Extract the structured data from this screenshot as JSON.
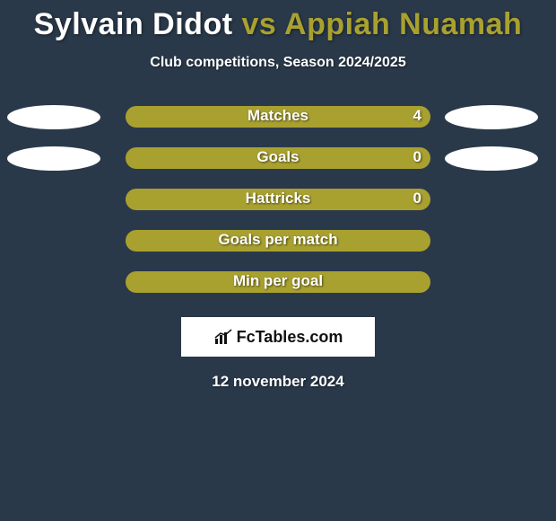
{
  "title": {
    "player1": "Sylvain Didot",
    "vs": "vs",
    "player2": "Appiah Nuamah",
    "player1_color": "#ffffff",
    "vs_color": "#a9a12f",
    "player2_color": "#a9a12f",
    "fontsize": 34
  },
  "subtitle": "Club competitions, Season 2024/2025",
  "background_color": "#2a394a",
  "bar_color": "#a9a12f",
  "ellipse_color": "#ffffff",
  "text_color": "#ffffff",
  "rows": [
    {
      "label": "Matches",
      "value": "4",
      "show_value": true,
      "show_left_ellipse": true,
      "show_right_ellipse": true
    },
    {
      "label": "Goals",
      "value": "0",
      "show_value": true,
      "show_left_ellipse": true,
      "show_right_ellipse": true
    },
    {
      "label": "Hattricks",
      "value": "0",
      "show_value": true,
      "show_left_ellipse": false,
      "show_right_ellipse": false
    },
    {
      "label": "Goals per match",
      "value": "",
      "show_value": false,
      "show_left_ellipse": false,
      "show_right_ellipse": false
    },
    {
      "label": "Min per goal",
      "value": "",
      "show_value": false,
      "show_left_ellipse": false,
      "show_right_ellipse": false
    }
  ],
  "logo": {
    "text": "FcTables.com",
    "box_bg": "#ffffff",
    "text_color": "#111111"
  },
  "date": "12 november 2024"
}
